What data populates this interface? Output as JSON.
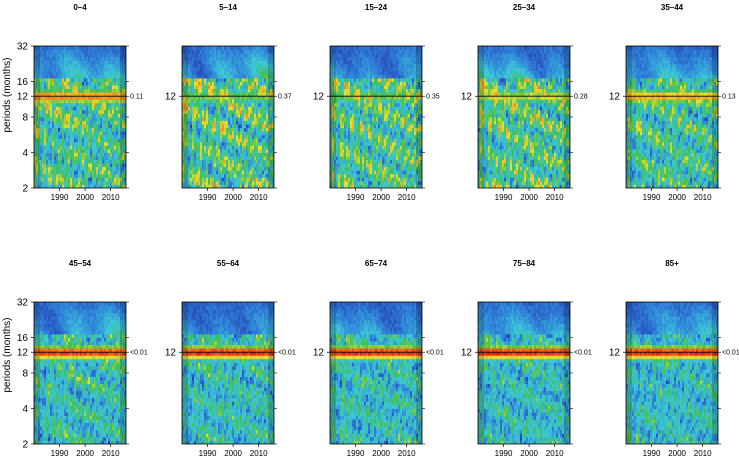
{
  "chart_data": {
    "type": "heatmap",
    "ylabel": "periods (months)",
    "y_ticks": [
      2,
      4,
      8,
      12,
      16,
      32
    ],
    "y_scale": "log2",
    "ylim": [
      2,
      32
    ],
    "x_ticks": [
      1990,
      2000,
      2010
    ],
    "xlim": [
      1980,
      2016
    ],
    "reference_period": 12,
    "color_scale": [
      "#2233aa",
      "#2f7fd8",
      "#3cc7d8",
      "#3fbf55",
      "#e8e030",
      "#f08a20",
      "#e02018"
    ],
    "panels": [
      {
        "title": "0–4",
        "p_value": "0.11",
        "annual_power": 0.85,
        "high_period_power": 0.35,
        "noise_power": 0.55
      },
      {
        "title": "5–14",
        "p_value": "0.37",
        "annual_power": 0.55,
        "high_period_power": 0.45,
        "noise_power": 0.6
      },
      {
        "title": "15–24",
        "p_value": "0.35",
        "annual_power": 0.55,
        "high_period_power": 0.3,
        "noise_power": 0.58
      },
      {
        "title": "25–34",
        "p_value": "0.28",
        "annual_power": 0.62,
        "high_period_power": 0.4,
        "noise_power": 0.6
      },
      {
        "title": "35–44",
        "p_value": "0.13",
        "annual_power": 0.78,
        "high_period_power": 0.3,
        "noise_power": 0.52
      },
      {
        "title": "45–54",
        "p_value": "<0.01",
        "annual_power": 0.95,
        "high_period_power": 0.35,
        "noise_power": 0.42
      },
      {
        "title": "55–64",
        "p_value": "<0.01",
        "annual_power": 0.98,
        "high_period_power": 0.25,
        "noise_power": 0.4
      },
      {
        "title": "65–74",
        "p_value": "<0.01",
        "annual_power": 0.98,
        "high_period_power": 0.3,
        "noise_power": 0.38
      },
      {
        "title": "75–84",
        "p_value": "<0.01",
        "annual_power": 0.98,
        "high_period_power": 0.3,
        "noise_power": 0.36
      },
      {
        "title": "85+",
        "p_value": "<0.01",
        "annual_power": 0.98,
        "high_period_power": 0.3,
        "noise_power": 0.36
      }
    ]
  }
}
